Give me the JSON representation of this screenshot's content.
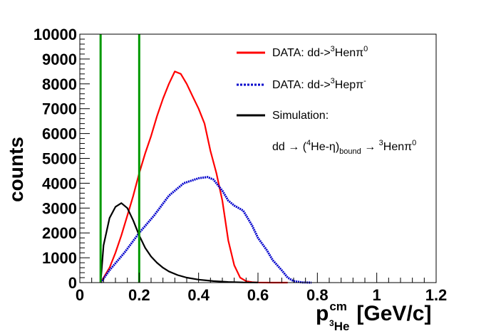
{
  "chart_data": {
    "type": "line",
    "title": "",
    "xlabel": {
      "main": "p",
      "sup": "cm",
      "sub_pre": "3",
      "sub": "He",
      "unit": "[GeV/c]"
    },
    "ylabel": "counts",
    "xlim": [
      0,
      1.2
    ],
    "ylim": [
      0,
      10000
    ],
    "grid": false,
    "legend_placement": "top-right",
    "x_ticks": [
      "0",
      "0.2",
      "0.4",
      "0.6",
      "0.8",
      "1",
      "1.2"
    ],
    "y_ticks": [
      "0",
      "1000",
      "2000",
      "3000",
      "4000",
      "5000",
      "6000",
      "7000",
      "8000",
      "9000",
      "10000"
    ],
    "vertical_lines": [
      {
        "x": 0.07,
        "color": "#009900"
      },
      {
        "x": 0.2,
        "color": "#009900"
      }
    ],
    "series": [
      {
        "name": "DATA: dd->3Henπ0",
        "legend": {
          "pre": "DATA: dd->",
          "sup1": "3",
          "mid": "Henπ",
          "sup2": "0"
        },
        "color": "#ff0000",
        "style": "solid",
        "x": [
          0.07,
          0.1,
          0.12,
          0.14,
          0.16,
          0.18,
          0.2,
          0.22,
          0.24,
          0.26,
          0.28,
          0.3,
          0.32,
          0.34,
          0.36,
          0.38,
          0.4,
          0.42,
          0.44,
          0.46,
          0.48,
          0.5,
          0.52,
          0.54,
          0.56,
          0.58,
          0.6,
          0.65,
          0.7
        ],
        "y": [
          0,
          600,
          1200,
          1900,
          2700,
          3500,
          4400,
          5200,
          5900,
          6700,
          7400,
          8000,
          8500,
          8400,
          8000,
          7500,
          7000,
          6400,
          5300,
          4400,
          3300,
          1700,
          700,
          200,
          60,
          20,
          5,
          0,
          0
        ]
      },
      {
        "name": "DATA: dd->3Hepπ-",
        "legend": {
          "pre": "DATA: dd->",
          "sup1": "3",
          "mid": "Hepπ",
          "sup2": "-"
        },
        "color": "#0000cc",
        "style": "dotted",
        "x": [
          0.07,
          0.1,
          0.15,
          0.2,
          0.25,
          0.3,
          0.35,
          0.4,
          0.43,
          0.45,
          0.48,
          0.5,
          0.52,
          0.55,
          0.58,
          0.6,
          0.63,
          0.65,
          0.68,
          0.7,
          0.72,
          0.75,
          0.78
        ],
        "y": [
          0,
          500,
          1200,
          2000,
          2700,
          3500,
          4000,
          4200,
          4250,
          4150,
          3700,
          3300,
          3100,
          2900,
          2300,
          1800,
          1300,
          900,
          500,
          200,
          60,
          10,
          0
        ]
      },
      {
        "name": "Simulation:",
        "legend": {
          "pre": "Simulation:",
          "sup1": "",
          "mid": "",
          "sup2": ""
        },
        "color": "#000000",
        "style": "solid",
        "x": [
          0.07,
          0.08,
          0.1,
          0.12,
          0.14,
          0.16,
          0.18,
          0.2,
          0.22,
          0.24,
          0.26,
          0.28,
          0.3,
          0.33,
          0.36,
          0.4,
          0.45,
          0.5,
          0.55,
          0.6
        ],
        "y": [
          0,
          1500,
          2600,
          3050,
          3200,
          3000,
          2500,
          1900,
          1400,
          1050,
          800,
          600,
          450,
          300,
          200,
          120,
          60,
          25,
          10,
          5
        ]
      }
    ],
    "annotation": {
      "pre": "dd → (",
      "sup1": "4",
      "mid": "He-η)",
      "sub": "bound",
      "post": " → ",
      "sup2": "3",
      "tail": "Henπ",
      "sup3": "0"
    }
  }
}
